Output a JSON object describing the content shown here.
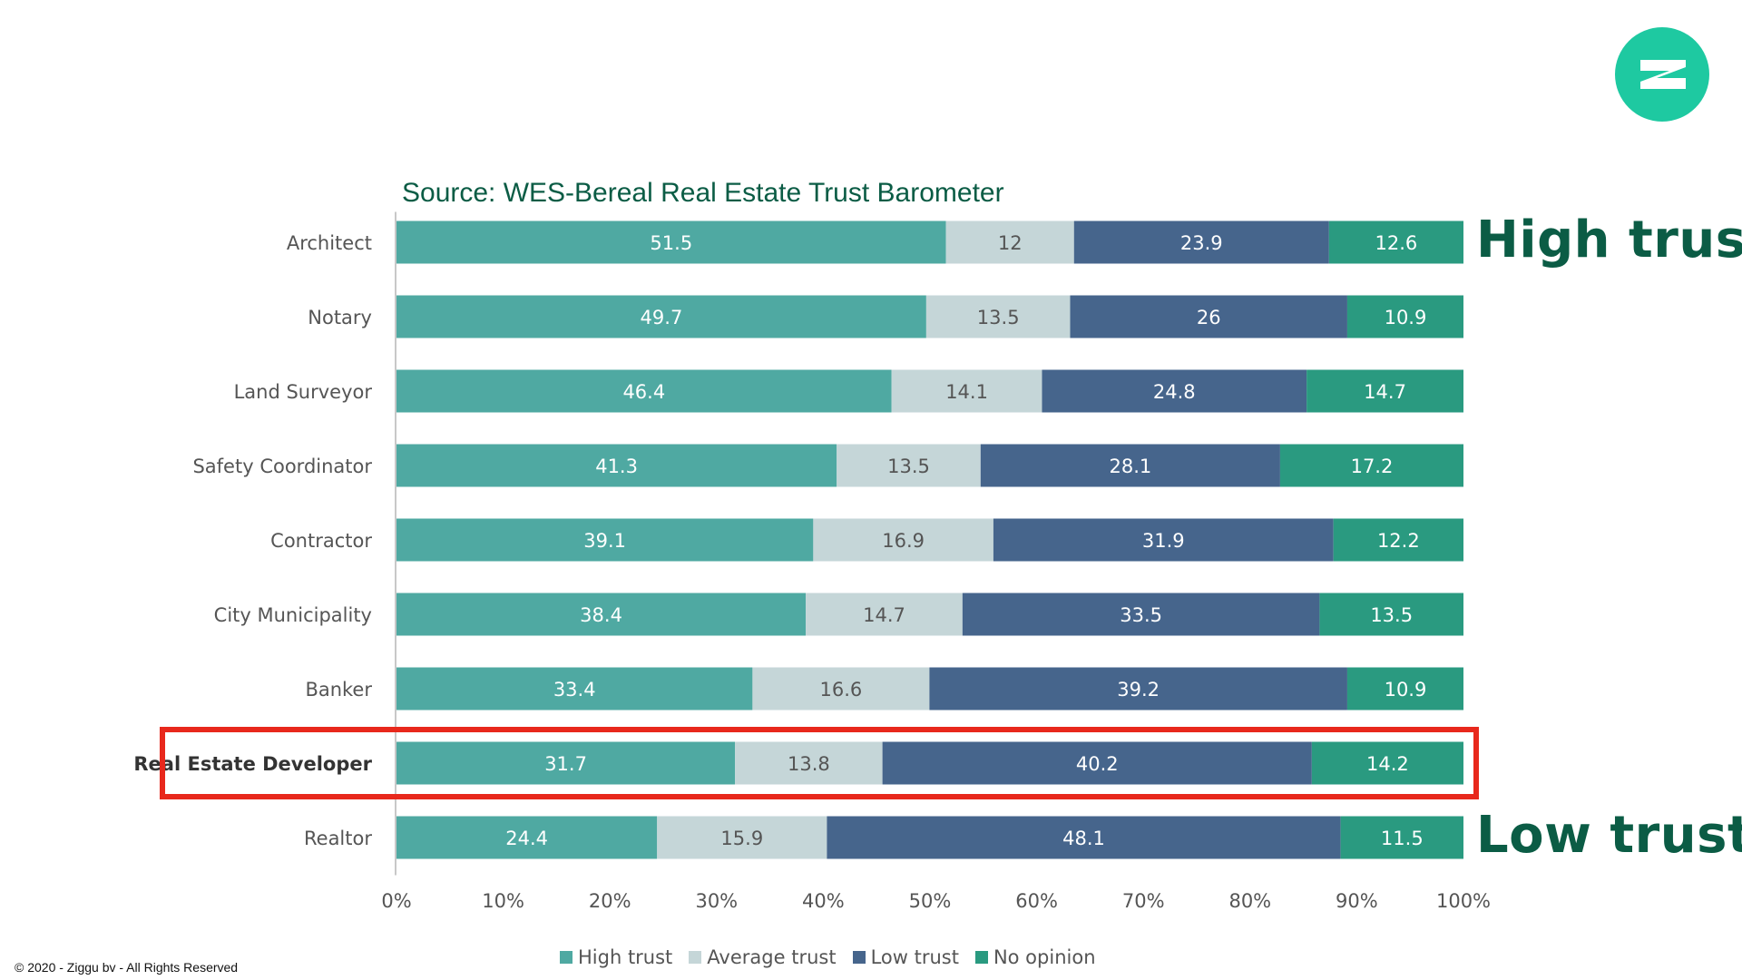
{
  "source_title": "Source: WES-Bereal Real Estate Trust Barometer",
  "annotations": {
    "high_trust": "High trust",
    "low_trust": "Low trust"
  },
  "copyright": "© 2020 - Ziggu bv - All Rights Reserved",
  "colors": {
    "logo": "#1ec9a1",
    "highlight": "#e8281c",
    "annotation": "#0b5c45"
  },
  "chart_data": {
    "type": "bar",
    "orientation": "horizontal",
    "stacked": "percent",
    "categories": [
      "Architect",
      "Notary",
      "Land Surveyor",
      "Safety Coordinator",
      "Contractor",
      "City Municipality",
      "Banker",
      "Real Estate Developer",
      "Realtor"
    ],
    "highlighted_category": "Real Estate Developer",
    "series": [
      {
        "name": "High trust",
        "color": "#4fa9a2",
        "values": [
          51.5,
          49.7,
          46.4,
          41.3,
          39.1,
          38.4,
          33.4,
          31.7,
          24.4
        ]
      },
      {
        "name": "Average trust",
        "color": "#c5d6d8",
        "values": [
          12,
          13.5,
          14.1,
          13.5,
          16.9,
          14.7,
          16.6,
          13.8,
          15.9
        ]
      },
      {
        "name": "Low trust",
        "color": "#46658c",
        "values": [
          23.9,
          26,
          24.8,
          28.1,
          31.9,
          33.5,
          39.2,
          40.2,
          48.1
        ]
      },
      {
        "name": "No opinion",
        "color": "#2a9a80",
        "values": [
          12.6,
          10.9,
          14.7,
          17.2,
          12.2,
          13.5,
          10.9,
          14.2,
          11.5
        ]
      }
    ],
    "x_ticks": [
      "0%",
      "10%",
      "20%",
      "30%",
      "40%",
      "50%",
      "60%",
      "70%",
      "80%",
      "90%",
      "100%"
    ],
    "xlim": [
      0,
      100
    ],
    "legend_position": "bottom"
  }
}
